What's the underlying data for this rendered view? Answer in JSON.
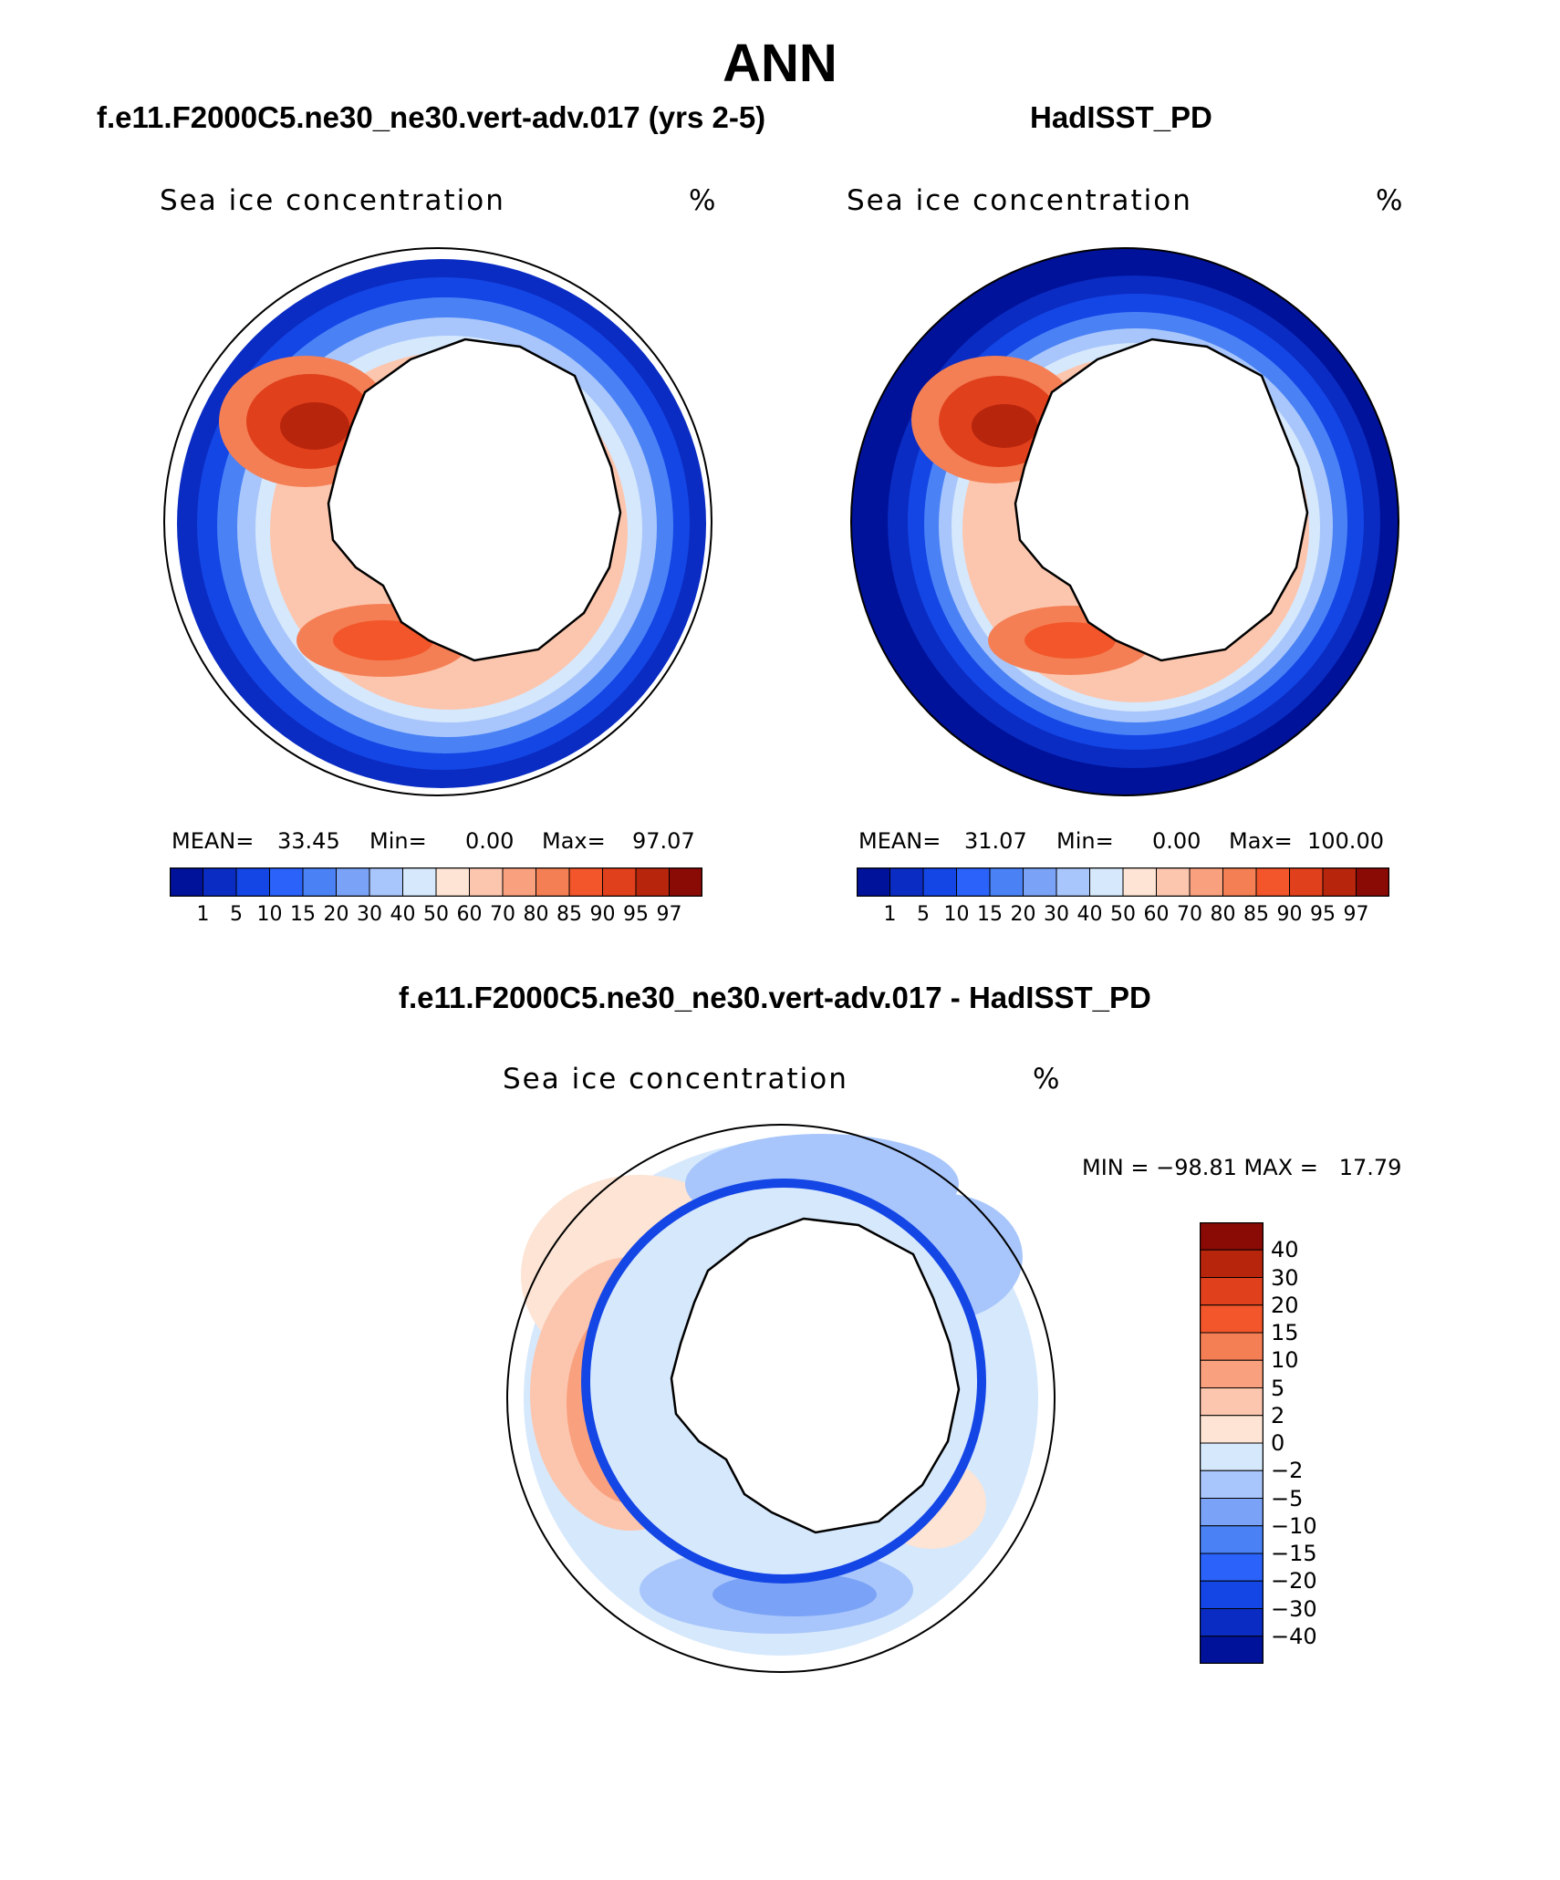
{
  "main_title": "ANN",
  "panels": [
    {
      "header": "f.e11.F2000C5.ne30_ne30.vert-adv.017 (yrs 2-5)",
      "label": "Sea ice concentration",
      "unit": "%",
      "mean_label": "MEAN=",
      "mean": "33.45",
      "min_label": "Min=",
      "min": "0.00",
      "max_label": "Max=",
      "max": "97.07",
      "open_ocean": "#ffffff"
    },
    {
      "header": "HadISST_PD",
      "label": "Sea ice concentration",
      "unit": "%",
      "mean_label": "MEAN=",
      "mean": "31.07",
      "min_label": "Min=",
      "min": "0.00",
      "max_label": "Max=",
      "max": "100.00",
      "open_ocean": "#00129a"
    }
  ],
  "colorbar": {
    "colors": [
      "#00129a",
      "#0a2cc2",
      "#1446e6",
      "#2a62fa",
      "#4a82f6",
      "#7aa2f6",
      "#a8c6fb",
      "#d6e8fc",
      "#fde4d4",
      "#fcc6ae",
      "#f9a07e",
      "#f47f55",
      "#f2562a",
      "#e0401c",
      "#b8250d",
      "#8a0a06"
    ],
    "ticks": [
      "1",
      "5",
      "10",
      "15",
      "20",
      "30",
      "40",
      "50",
      "60",
      "70",
      "80",
      "85",
      "90",
      "95",
      "97"
    ]
  },
  "diff": {
    "header": "f.e11.F2000C5.ne30_ne30.vert-adv.017 - HadISST_PD",
    "label": "Sea ice concentration",
    "unit": "%",
    "minmax_text": "MIN = −98.81 MAX =   17.79",
    "colors_top_to_bottom": [
      "#8a0a06",
      "#b8250d",
      "#e0401c",
      "#f2562a",
      "#f47f55",
      "#f9a07e",
      "#fcc6ae",
      "#fde4d4",
      "#d6e8fc",
      "#a8c6fb",
      "#7aa2f6",
      "#4a82f6",
      "#2a62fa",
      "#1446e6",
      "#0a2cc2",
      "#00129a"
    ],
    "ticks_top_to_bottom": [
      "40",
      "30",
      "20",
      "15",
      "10",
      "5",
      "2",
      "0",
      "−2",
      "−5",
      "−10",
      "−15",
      "−20",
      "−30",
      "−40"
    ]
  }
}
